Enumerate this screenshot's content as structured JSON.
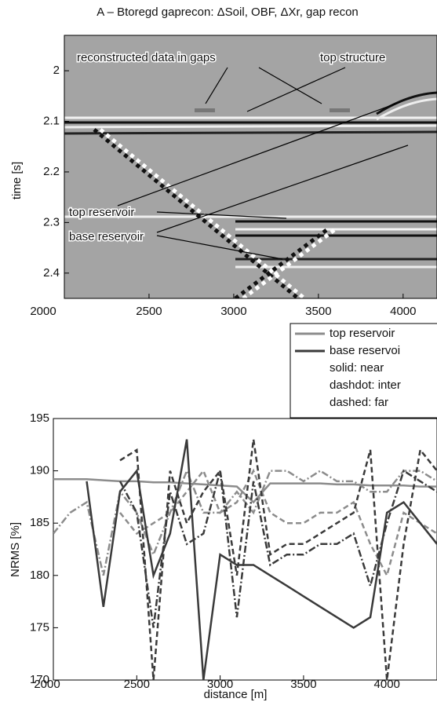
{
  "chart_data": [
    {
      "type": "image",
      "title": "A – Btoregd gaprecon: ΔSoil, OBF, ΔXr, gap recon",
      "ylabel": "time [s]",
      "xlim": [
        2000,
        4200
      ],
      "ylim": [
        1.93,
        2.45
      ],
      "xticks": [
        2000,
        2500,
        3000,
        3500,
        4000
      ],
      "yticks": [
        2,
        2.1,
        2.2,
        2.3,
        2.4
      ],
      "annotations": [
        "reconstructed data in gaps",
        "top structure",
        "top reservoir",
        "base reservoir"
      ]
    },
    {
      "type": "line",
      "ylabel": "NRMS [%]",
      "xlabel": "distance [m]",
      "xlim": [
        2000,
        4300
      ],
      "ylim": [
        170,
        195
      ],
      "xticks": [
        2000,
        2500,
        3000,
        3500,
        4000
      ],
      "yticks": [
        170,
        175,
        180,
        185,
        190,
        195
      ],
      "x": [
        2000,
        2100,
        2200,
        2300,
        2400,
        2500,
        2600,
        2700,
        2800,
        2900,
        3000,
        3100,
        3200,
        3300,
        3400,
        3500,
        3600,
        3700,
        3800,
        3900,
        4000,
        4100,
        4200,
        4300
      ],
      "series": [
        {
          "color": "#8c8c8c",
          "dash": "solid",
          "values": [
            189.2,
            189.2,
            189.2,
            189.1,
            189,
            189,
            188.9,
            188.9,
            188.8,
            188.7,
            188.6,
            188.5,
            187,
            188.8,
            188.8,
            188.8,
            188.8,
            188.7,
            188.7,
            188.6,
            188.6,
            188.6,
            188.5,
            188.5
          ]
        },
        {
          "color": "#8c8c8c",
          "dash": "dashdot",
          "values": [
            184,
            186,
            187,
            180,
            188,
            186,
            182,
            186,
            190,
            186,
            186,
            188,
            186,
            190,
            190,
            189,
            190,
            189,
            189,
            188,
            188,
            190,
            190,
            189
          ]
        },
        {
          "color": "#8c8c8c",
          "dash": "dashed",
          "values": [
            null,
            null,
            null,
            null,
            186,
            184,
            185,
            186,
            188,
            190,
            186,
            187,
            190,
            186,
            185,
            185,
            186,
            186,
            187,
            183,
            180,
            186,
            185,
            184
          ]
        },
        {
          "color": "#3a3a3a",
          "dash": "solid",
          "values": [
            null,
            null,
            189,
            177,
            188,
            190,
            180,
            184,
            193,
            170,
            182,
            181,
            181,
            180,
            179,
            178,
            177,
            176,
            175,
            176,
            186,
            187,
            185,
            183
          ]
        },
        {
          "color": "#3a3a3a",
          "dash": "dashdot",
          "values": [
            null,
            null,
            null,
            null,
            189,
            186,
            175,
            188,
            183,
            184,
            190,
            176,
            189,
            181,
            182,
            182,
            183,
            183,
            184,
            179,
            185,
            190,
            189,
            188
          ]
        },
        {
          "color": "#3a3a3a",
          "dash": "dashed",
          "values": [
            null,
            null,
            null,
            null,
            191,
            192,
            170,
            190,
            185,
            188,
            190,
            180,
            193,
            182,
            183,
            183,
            184,
            185,
            186,
            192,
            170,
            183,
            192,
            190
          ]
        }
      ],
      "legend": [
        {
          "label": "top reservoir",
          "color": "#8c8c8c"
        },
        {
          "label": "base reservoi",
          "color": "#3a3a3a"
        }
      ],
      "legend_notes": [
        "solid: near",
        "dashdot: inter",
        "dashed: far"
      ]
    }
  ]
}
